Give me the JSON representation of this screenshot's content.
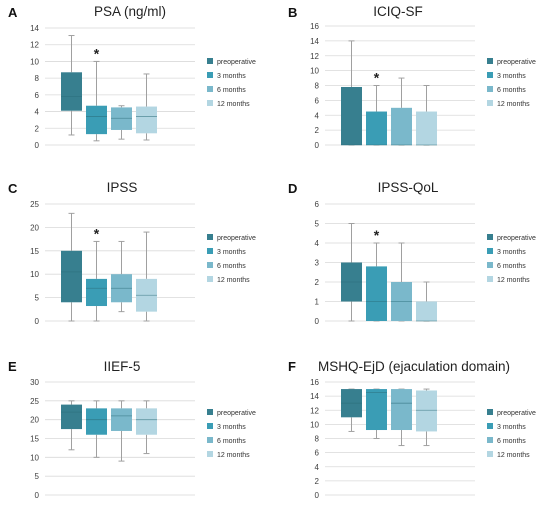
{
  "colors": {
    "preoperative": "#377f8f",
    "3 months": "#3a9db5",
    "6 months": "#7ab8cb",
    "12 months": "#b3d6e2",
    "grid": "#d9d9d9",
    "whisker": "#a0a0a0"
  },
  "legend": [
    "preoperative",
    "3 months",
    "6 months",
    "12 months"
  ],
  "chart_data": [
    {
      "type": "boxplot",
      "label": "A",
      "title": "PSA (ng/ml)",
      "ylim": [
        0,
        14
      ],
      "yticks": [
        0,
        2,
        4,
        6,
        8,
        10,
        12,
        14
      ],
      "grid": true,
      "legend_position": "right",
      "significant_group": "3 months",
      "series": [
        {
          "name": "preoperative",
          "min": 1.2,
          "q1": 4.1,
          "median": 5.8,
          "q3": 8.7,
          "max": 13.1
        },
        {
          "name": "3 months",
          "min": 0.5,
          "q1": 1.3,
          "median": 3.4,
          "q3": 4.7,
          "max": 10.0
        },
        {
          "name": "6 months",
          "min": 0.7,
          "q1": 1.8,
          "median": 3.2,
          "q3": 4.5,
          "max": 4.7
        },
        {
          "name": "12 months",
          "min": 0.6,
          "q1": 1.4,
          "median": 3.4,
          "q3": 4.6,
          "max": 8.5
        }
      ]
    },
    {
      "type": "boxplot",
      "label": "B",
      "title": "ICIQ-SF",
      "ylim": [
        0,
        16
      ],
      "yticks": [
        0,
        2,
        4,
        6,
        8,
        10,
        12,
        14,
        16
      ],
      "grid": true,
      "legend_position": "right",
      "significant_group": "3 months",
      "series": [
        {
          "name": "preoperative",
          "min": 0,
          "q1": 0,
          "median": 0,
          "q3": 7.8,
          "max": 14
        },
        {
          "name": "3 months",
          "min": 0,
          "q1": 0,
          "median": 0,
          "q3": 4.5,
          "max": 8.0
        },
        {
          "name": "6 months",
          "min": 0,
          "q1": 0,
          "median": 0,
          "q3": 5.0,
          "max": 9.0
        },
        {
          "name": "12 months",
          "min": 0,
          "q1": 0,
          "median": 0,
          "q3": 4.5,
          "max": 8.0
        }
      ]
    },
    {
      "type": "boxplot",
      "label": "C",
      "title": "IPSS",
      "ylim": [
        0,
        25
      ],
      "yticks": [
        0,
        5,
        10,
        15,
        20,
        25
      ],
      "grid": true,
      "legend_position": "right",
      "significant_group": "3 months",
      "series": [
        {
          "name": "preoperative",
          "min": 0,
          "q1": 4.0,
          "median": 10.5,
          "q3": 15.0,
          "max": 23.0
        },
        {
          "name": "3 months",
          "min": 0,
          "q1": 3.2,
          "median": 7.0,
          "q3": 9.0,
          "max": 17.0
        },
        {
          "name": "6 months",
          "min": 2.0,
          "q1": 4.0,
          "median": 7.0,
          "q3": 10.0,
          "max": 17.0
        },
        {
          "name": "12 months",
          "min": 0,
          "q1": 2.0,
          "median": 5.5,
          "q3": 9.0,
          "max": 19.0
        }
      ]
    },
    {
      "type": "boxplot",
      "label": "D",
      "title": "IPSS-QoL",
      "ylim": [
        0,
        6
      ],
      "yticks": [
        0,
        1,
        2,
        3,
        4,
        5,
        6
      ],
      "grid": true,
      "legend_position": "right",
      "significant_group": "3 months",
      "series": [
        {
          "name": "preoperative",
          "min": 0,
          "q1": 1.0,
          "median": 2.0,
          "q3": 3.0,
          "max": 5.0
        },
        {
          "name": "3 months",
          "min": 0,
          "q1": 0,
          "median": 1.0,
          "q3": 2.8,
          "max": 4.0
        },
        {
          "name": "6 months",
          "min": 0,
          "q1": 0,
          "median": 1.0,
          "q3": 2.0,
          "max": 4.0
        },
        {
          "name": "12 months",
          "min": 0,
          "q1": 0,
          "median": 0,
          "q3": 1.0,
          "max": 2.0
        }
      ]
    },
    {
      "type": "boxplot",
      "label": "E",
      "title": "IIEF-5",
      "ylim": [
        0,
        30
      ],
      "yticks": [
        0,
        5,
        10,
        15,
        20,
        25,
        30
      ],
      "grid": true,
      "legend_position": "right",
      "significant_group": "",
      "series": [
        {
          "name": "preoperative",
          "min": 12.0,
          "q1": 17.5,
          "median": 22.0,
          "q3": 24.0,
          "max": 25.0
        },
        {
          "name": "3 months",
          "min": 10.0,
          "q1": 16.0,
          "median": 20.0,
          "q3": 23.0,
          "max": 25.0
        },
        {
          "name": "6 months",
          "min": 9.0,
          "q1": 17.0,
          "median": 21.0,
          "q3": 23.0,
          "max": 25.0
        },
        {
          "name": "12 months",
          "min": 11.0,
          "q1": 16.0,
          "median": 20.0,
          "q3": 23.0,
          "max": 25.0
        }
      ]
    },
    {
      "type": "boxplot",
      "label": "F",
      "title": "MSHQ-EjD (ejaculation domain)",
      "ylim": [
        0,
        16
      ],
      "yticks": [
        0,
        2,
        4,
        6,
        8,
        10,
        12,
        14,
        16
      ],
      "grid": true,
      "legend_position": "right",
      "significant_group": "",
      "series": [
        {
          "name": "preoperative",
          "min": 9.0,
          "q1": 11.0,
          "median": 13.0,
          "q3": 15.0,
          "max": 15.0
        },
        {
          "name": "3 months",
          "min": 8.0,
          "q1": 9.2,
          "median": 14.5,
          "q3": 15.0,
          "max": 15.0
        },
        {
          "name": "6 months",
          "min": 7.0,
          "q1": 9.2,
          "median": 13.0,
          "q3": 15.0,
          "max": 15.0
        },
        {
          "name": "12 months",
          "min": 7.0,
          "q1": 9.0,
          "median": 12.0,
          "q3": 14.8,
          "max": 15.0
        }
      ]
    }
  ]
}
